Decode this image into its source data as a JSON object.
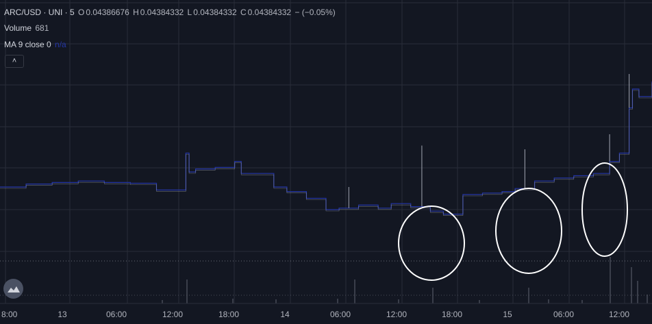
{
  "legend": {
    "symbol": "ARC/USD · UNI · 5",
    "open_label": "O",
    "open_value": "0.04386676",
    "high_label": "H",
    "high_value": "0.04384332",
    "low_label": "L",
    "low_value": "0.04384332",
    "close_label": "C",
    "close_value": "0.04384332",
    "change": "− (−0.05%)",
    "volume_label": "Volume",
    "volume_value": "681",
    "ma_label": "MA 9 close 0",
    "ma_value": "n/a"
  },
  "colors": {
    "background": "#131722",
    "grid": "#2a2e39",
    "price_line": "#2436a6",
    "price_bars": "#a4a8b4",
    "annotation": "#ffffff"
  },
  "icons": {
    "collapse": "chevron-up-icon",
    "logo": "tradingview-logo-icon"
  },
  "chart_data": {
    "type": "line",
    "x_tick_labels": [
      "8:00",
      "13",
      "06:00",
      "12:00",
      "18:00",
      "14",
      "06:00",
      "12:00",
      "18:00",
      "15",
      "06:00",
      "12:00"
    ],
    "annotations": [
      "hand-drawn circle",
      "hand-drawn circle",
      "hand-drawn circle"
    ],
    "grid": true,
    "series": [
      {
        "x": [
          0,
          0.04,
          0.08,
          0.12,
          0.16,
          0.2,
          0.24,
          0.26,
          0.285,
          0.29,
          0.3,
          0.33,
          0.36,
          0.37,
          0.41,
          0.42,
          0.44,
          0.47,
          0.5,
          0.52,
          0.55,
          0.58,
          0.6,
          0.63,
          0.66,
          0.68,
          0.71,
          0.72,
          0.74,
          0.77,
          0.79,
          0.82,
          0.85,
          0.88,
          0.91,
          0.935,
          0.95,
          0.965,
          0.97,
          0.98,
          1.0
        ],
        "values": [
          0.043,
          0.04304,
          0.04306,
          0.04308,
          0.04306,
          0.04305,
          0.04296,
          0.04296,
          0.04345,
          0.0432,
          0.04324,
          0.04326,
          0.04334,
          0.04318,
          0.04318,
          0.043,
          0.04294,
          0.04285,
          0.0427,
          0.04272,
          0.04276,
          0.04272,
          0.04278,
          0.04274,
          0.04268,
          0.04264,
          0.0429,
          0.0429,
          0.04292,
          0.04294,
          0.04298,
          0.04308,
          0.04312,
          0.04315,
          0.04318,
          0.04334,
          0.04345,
          0.04405,
          0.0443,
          0.0442,
          0.0444
        ]
      }
    ],
    "spikes_x": [
      0.535,
      0.647,
      0.805,
      0.935,
      0.965
    ],
    "spikes_value": [
      0.043,
      0.04355,
      0.0435,
      0.0437,
      0.0445
    ]
  }
}
